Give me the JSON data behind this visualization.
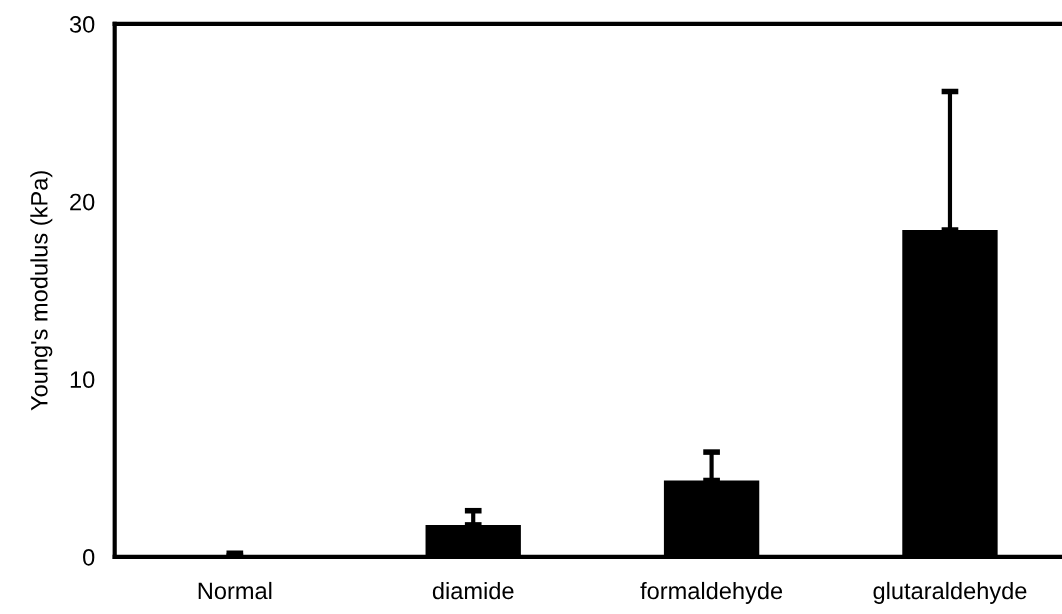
{
  "chart_data": {
    "type": "bar",
    "ylabel": "Young's modulus (kPa)",
    "categories": [
      "Normal",
      "diamide",
      "formaldehyde",
      "glutaraldehyde"
    ],
    "values": [
      0.05,
      1.8,
      4.3,
      18.4
    ],
    "errors": [
      [
        0.05,
        0.2
      ],
      [
        1.8,
        2.6
      ],
      [
        4.3,
        5.9
      ],
      [
        18.4,
        26.2
      ]
    ],
    "color": "#000000",
    "ylim": [
      0,
      30
    ],
    "yticks": [
      0,
      10,
      20,
      30
    ],
    "grid": false
  }
}
